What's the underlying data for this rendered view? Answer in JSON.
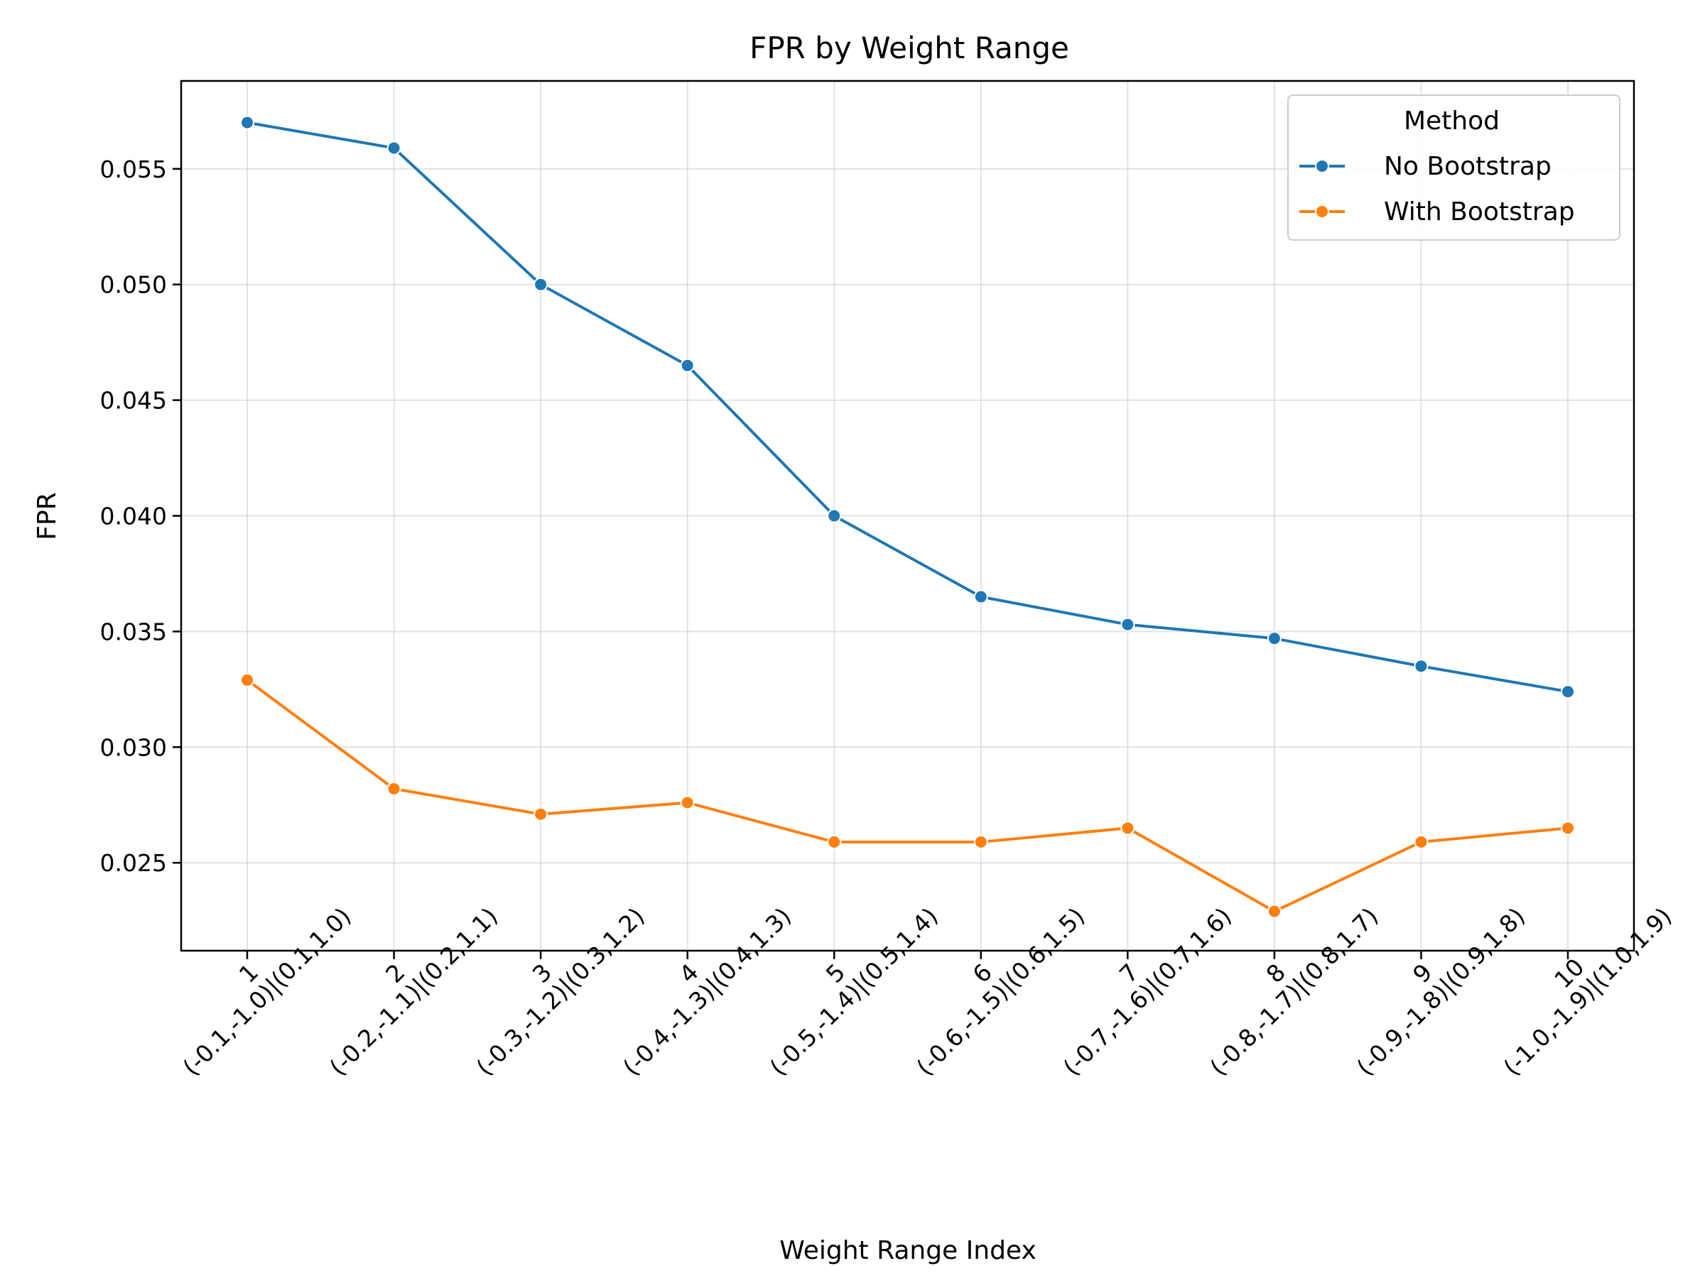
{
  "chart_data": {
    "type": "line",
    "title": "FPR by Weight Range",
    "xlabel": "Weight Range Index",
    "ylabel": "FPR",
    "categories": [
      [
        "1",
        "(-0.1,-1.0)|(0.1,1.0)"
      ],
      [
        "2",
        "(-0.2,-1.1)|(0.2,1.1)"
      ],
      [
        "3",
        "(-0.3,-1.2)|(0.3,1.2)"
      ],
      [
        "4",
        "(-0.4,-1.3)|(0.4,1.3)"
      ],
      [
        "5",
        "(-0.5,-1.4)|(0.5,1.4)"
      ],
      [
        "6",
        "(-0.6,-1.5)|(0.6,1.5)"
      ],
      [
        "7",
        "(-0.7,-1.6)|(0.7,1.6)"
      ],
      [
        "8",
        "(-0.8,-1.7)|(0.8,1.7)"
      ],
      [
        "9",
        "(-0.9,-1.8)|(0.9,1.8)"
      ],
      [
        "10",
        "(-1.0,-1.9)|(1.0,1.9)"
      ]
    ],
    "ylim": [
      0.0212,
      0.0588
    ],
    "yticks": [
      0.025,
      0.03,
      0.035,
      0.04,
      0.045,
      0.05,
      0.055
    ],
    "ytick_labels": [
      "0.025",
      "0.030",
      "0.035",
      "0.040",
      "0.045",
      "0.050",
      "0.055"
    ],
    "grid": true,
    "legend": {
      "title": "Method",
      "placement": "top-right"
    },
    "series": [
      {
        "name": "No Bootstrap",
        "color": "#1f77b4",
        "values": [
          0.057,
          0.0559,
          0.05,
          0.0465,
          0.04,
          0.0365,
          0.0353,
          0.0347,
          0.0335,
          0.0324
        ]
      },
      {
        "name": "With Bootstrap",
        "color": "#ff7f0e",
        "values": [
          0.0329,
          0.0282,
          0.0271,
          0.0276,
          0.0259,
          0.0259,
          0.0265,
          0.0229,
          0.0259,
          0.0265
        ]
      }
    ]
  }
}
